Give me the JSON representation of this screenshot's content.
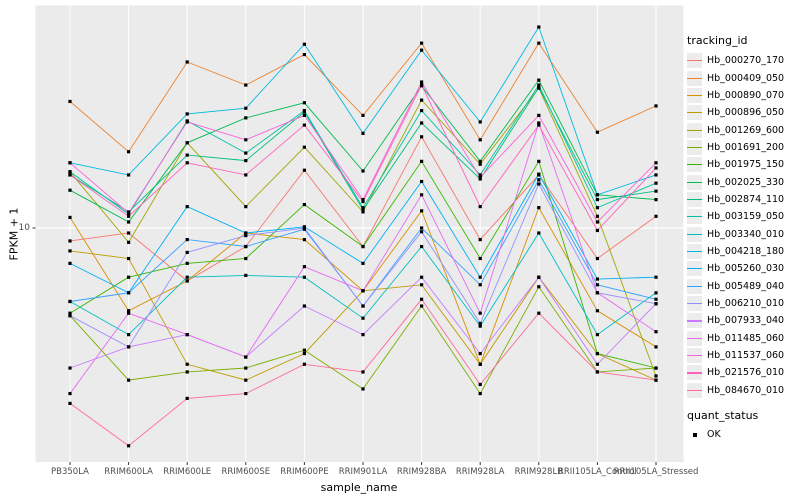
{
  "figure": {
    "background": "#FFFFFF",
    "panel_background": "#EBEBEB",
    "gridline_color": "#FFFFFF",
    "tick_color": "#333333",
    "tick_label_color": "#4D4D4D"
  },
  "axes": {
    "x_title": "sample_name",
    "y_title": "FPKM + 1",
    "y_tick_label": "10"
  },
  "legend": {
    "tracking_title": "tracking_id",
    "quant_title": "quant_status",
    "quant_items": [
      {
        "label": "OK",
        "shape": "filled-square",
        "color": "#000000"
      }
    ]
  },
  "chart_data": {
    "type": "line",
    "title": "",
    "xlabel": "sample_name",
    "ylabel": "FPKM + 1",
    "y_scale": "log10",
    "y_ticks": [
      10
    ],
    "grid": "major-on",
    "legend_position": "right",
    "point_shape": "filled-square",
    "point_color": "#000000",
    "categories": [
      "PB350LA",
      "RRIM600LA",
      "RRIM600LE",
      "RRIM600SE",
      "RRIM600PE",
      "RRIM901LA",
      "RRIM928BA",
      "RRIM928LA",
      "RRIM928LB",
      "RRII105LA_Control",
      "RRII105LA_Stressed"
    ],
    "series": [
      {
        "name": "Hb_000270_170",
        "color": "#F8766D",
        "values": [
          9.0,
          9.6,
          6.5,
          8.6,
          16.0,
          8.6,
          21.0,
          9.1,
          15.4,
          7.8,
          11.0
        ]
      },
      {
        "name": "Hb_000409_050",
        "color": "#EA8331",
        "values": [
          28.0,
          18.6,
          38.6,
          32.0,
          41.0,
          25.0,
          45.0,
          20.5,
          45.0,
          21.8,
          27.0
        ]
      },
      {
        "name": "Hb_000890_070",
        "color": "#D89000",
        "values": [
          10.9,
          5.1,
          6.5,
          9.6,
          9.1,
          6.0,
          11.5,
          3.3,
          11.8,
          5.1,
          3.8
        ]
      },
      {
        "name": "Hb_000896_050",
        "color": "#C09B00",
        "values": [
          8.3,
          7.8,
          3.3,
          2.9,
          3.6,
          6.0,
          6.3,
          3.3,
          6.7,
          3.6,
          2.9
        ]
      },
      {
        "name": "Hb_001269_600",
        "color": "#A3A500",
        "values": [
          15.8,
          8.9,
          20.0,
          11.9,
          19.3,
          11.4,
          28.3,
          16.8,
          31.2,
          11.0,
          3.0
        ]
      },
      {
        "name": "Hb_001691_200",
        "color": "#7CAE00",
        "values": [
          4.9,
          2.9,
          3.1,
          3.2,
          3.7,
          2.7,
          5.3,
          2.6,
          6.2,
          3.1,
          3.2
        ]
      },
      {
        "name": "Hb_001975_150",
        "color": "#39B600",
        "values": [
          5.0,
          6.7,
          7.5,
          7.8,
          12.1,
          8.6,
          17.2,
          7.8,
          17.2,
          3.6,
          3.2
        ]
      },
      {
        "name": "Hb_002025_330",
        "color": "#00BB4E",
        "values": [
          13.6,
          10.5,
          20.0,
          24.5,
          27.7,
          15.9,
          31.8,
          17.2,
          33.3,
          13.1,
          12.6
        ]
      },
      {
        "name": "Hb_002874_110",
        "color": "#00BF7D",
        "values": [
          15.4,
          11.4,
          18.1,
          17.3,
          25.7,
          11.6,
          23.5,
          14.9,
          31.4,
          12.6,
          13.5
        ]
      },
      {
        "name": "Hb_003159_050",
        "color": "#00C1A3",
        "values": [
          15.8,
          11.2,
          23.9,
          18.4,
          26.0,
          11.8,
          26.0,
          15.4,
          32.0,
          11.8,
          14.4
        ]
      },
      {
        "name": "Hb_003340_010",
        "color": "#00BFC4",
        "values": [
          5.5,
          4.2,
          6.7,
          6.8,
          6.7,
          4.8,
          8.6,
          4.5,
          9.6,
          4.2,
          5.9
        ]
      },
      {
        "name": "Hb_004218_180",
        "color": "#00BAE0",
        "values": [
          17.0,
          15.4,
          25.3,
          26.5,
          44.6,
          21.6,
          42.5,
          23.7,
          51.3,
          13.1,
          15.4
        ]
      },
      {
        "name": "Hb_005260_030",
        "color": "#00B0F6",
        "values": [
          7.5,
          5.9,
          11.9,
          9.6,
          10.1,
          7.5,
          14.6,
          6.7,
          15.5,
          6.6,
          6.7
        ]
      },
      {
        "name": "Hb_005489_040",
        "color": "#35A2FF",
        "values": [
          5.5,
          5.9,
          9.1,
          8.6,
          9.9,
          5.3,
          10.0,
          6.3,
          14.8,
          6.3,
          5.6
        ]
      },
      {
        "name": "Hb_006210_010",
        "color": "#9590FF",
        "values": [
          4.9,
          3.8,
          8.2,
          9.4,
          10.0,
          5.3,
          9.7,
          4.6,
          14.3,
          5.9,
          5.4
        ]
      },
      {
        "name": "Hb_007933_040",
        "color": "#C77CFF",
        "values": [
          3.2,
          3.8,
          4.2,
          3.5,
          5.3,
          4.2,
          6.7,
          3.6,
          6.7,
          3.3,
          5.4
        ]
      },
      {
        "name": "Hb_011485_060",
        "color": "#E76BF3",
        "values": [
          2.6,
          5.0,
          4.2,
          3.5,
          7.3,
          6.0,
          13.1,
          5.0,
          23.5,
          5.9,
          4.3
        ]
      },
      {
        "name": "Hb_011537_060",
        "color": "#FA62DB",
        "values": [
          17.0,
          11.3,
          23.7,
          20.5,
          25.0,
          12.6,
          32.8,
          15.1,
          25.0,
          10.5,
          17.0
        ]
      },
      {
        "name": "Hb_021576_010",
        "color": "#FF62BC",
        "values": [
          15.4,
          11.0,
          17.0,
          15.4,
          23.1,
          12.4,
          32.0,
          11.9,
          23.1,
          9.8,
          16.3
        ]
      },
      {
        "name": "Hb_084670_010",
        "color": "#FF6A98",
        "values": [
          2.4,
          1.7,
          2.5,
          2.6,
          3.3,
          3.1,
          5.6,
          2.8,
          5.0,
          3.1,
          2.9
        ]
      }
    ]
  }
}
